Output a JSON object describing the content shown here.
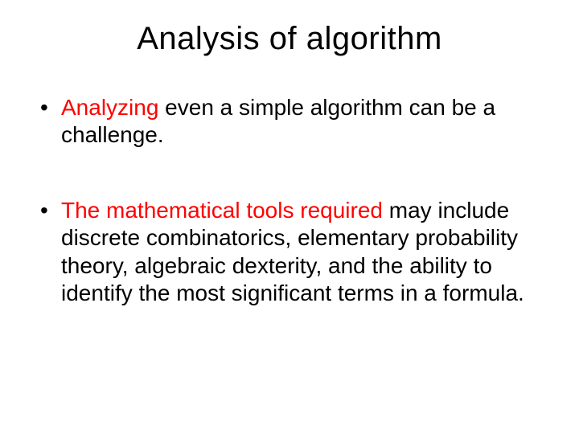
{
  "slide": {
    "background_color": "#ffffff",
    "text_color": "#000000",
    "accent_color": "#ff0000",
    "title": "Analysis of algorithm",
    "title_fontsize": 40,
    "body_fontsize": 28,
    "bullets": [
      {
        "red_prefix": "Analyzing",
        "rest": " even a simple algorithm can be a challenge."
      },
      {
        "red_prefix": "The mathematical tools required",
        "rest": " may include discrete combinatorics, elementary probability theory, algebraic dexterity, and the ability to identify the most significant terms in a formula."
      }
    ]
  }
}
